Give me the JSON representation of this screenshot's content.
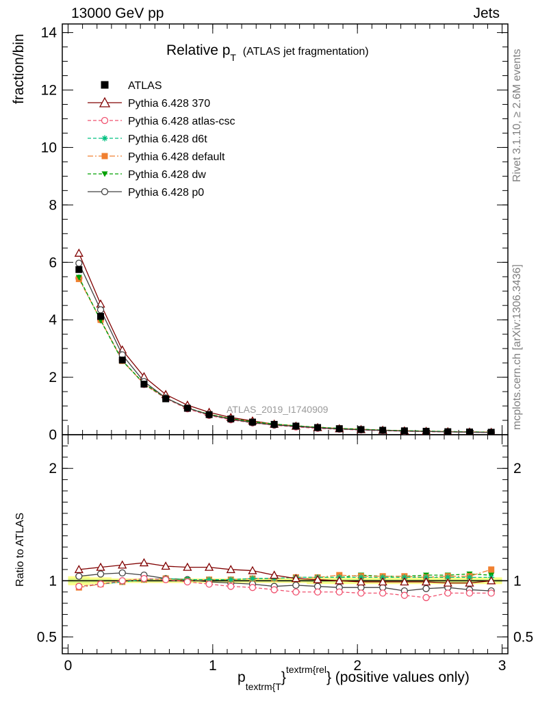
{
  "header": {
    "left": "13000 GeV pp",
    "right": "Jets",
    "title_main": "Relative p",
    "title_sub": "T",
    "title_paren": "(ATLAS jet fragmentation)"
  },
  "side_labels": {
    "rivet": "Rivet 3.1.10, ≥ 2.6M events",
    "mcplots": "mcplots.cern.ch [arXiv:1306.3436]"
  },
  "watermark": "ATLAS_2019_I1740909",
  "axes": {
    "ylabel_top": "fraction/bin",
    "ylabel_bottom": "Ratio to ATLAS",
    "xlabel_main": "p",
    "xlabel_sub": "textrm{T",
    "xlabel_brace": "}",
    "xlabel_sup": "textrm{rel",
    "xlabel_tail": "} (positive values only)"
  },
  "chart_data": {
    "type": "line",
    "x": [
      0.075,
      0.225,
      0.375,
      0.525,
      0.675,
      0.825,
      0.975,
      1.125,
      1.275,
      1.425,
      1.575,
      1.725,
      1.875,
      2.025,
      2.175,
      2.325,
      2.475,
      2.625,
      2.775,
      2.925
    ],
    "xlim": [
      -0.04,
      3.04
    ],
    "xticks": [
      0,
      1,
      2,
      3
    ],
    "top_panel": {
      "ylim": [
        0,
        14.3
      ],
      "yticks": [
        0,
        2,
        4,
        6,
        8,
        10,
        12,
        14
      ],
      "series": [
        {
          "name": "ATLAS",
          "color": "#000000",
          "marker": "filled-square",
          "line": "none",
          "values": [
            5.75,
            4.12,
            2.6,
            1.76,
            1.25,
            0.92,
            0.7,
            0.55,
            0.44,
            0.36,
            0.3,
            0.25,
            0.21,
            0.18,
            0.155,
            0.135,
            0.12,
            0.105,
            0.095,
            0.085
          ]
        },
        {
          "name": "Pythia 6.428 370",
          "color": "#800000",
          "marker": "open-triangle",
          "line": "solid",
          "values": [
            6.32,
            4.55,
            2.95,
            2.02,
            1.4,
            1.03,
            0.78,
            0.6,
            0.48,
            0.37,
            0.3,
            0.25,
            0.21,
            0.18,
            0.155,
            0.135,
            0.12,
            0.105,
            0.094,
            0.085
          ]
        },
        {
          "name": "Pythia 6.428 atlas-csc",
          "color": "#f0506e",
          "marker": "open-circle",
          "line": "dashed",
          "values": [
            5.45,
            4.0,
            2.6,
            1.75,
            1.26,
            0.9,
            0.67,
            0.52,
            0.41,
            0.33,
            0.27,
            0.22,
            0.19,
            0.16,
            0.14,
            0.12,
            0.105,
            0.094,
            0.085,
            0.077
          ]
        },
        {
          "name": "Pythia 6.428 d6t",
          "color": "#00c080",
          "marker": "star",
          "line": "dashed",
          "values": [
            5.47,
            3.99,
            2.58,
            1.78,
            1.28,
            0.93,
            0.71,
            0.56,
            0.45,
            0.37,
            0.31,
            0.26,
            0.22,
            0.19,
            0.16,
            0.14,
            0.125,
            0.11,
            0.098,
            0.088
          ]
        },
        {
          "name": "Pythia 6.428 default",
          "color": "#f08030",
          "marker": "filled-square",
          "line": "dashdot",
          "values": [
            5.42,
            4.0,
            2.57,
            1.77,
            1.28,
            0.92,
            0.71,
            0.56,
            0.45,
            0.37,
            0.31,
            0.26,
            0.22,
            0.19,
            0.16,
            0.14,
            0.124,
            0.11,
            0.098,
            0.094
          ]
        },
        {
          "name": "Pythia 6.428 dw",
          "color": "#00a000",
          "marker": "filled-triangle-down",
          "line": "dashed",
          "values": [
            5.48,
            3.98,
            2.57,
            1.78,
            1.28,
            0.93,
            0.71,
            0.56,
            0.45,
            0.37,
            0.31,
            0.26,
            0.22,
            0.19,
            0.16,
            0.14,
            0.125,
            0.11,
            0.099,
            0.087
          ]
        },
        {
          "name": "Pythia 6.428 p0",
          "color": "#404040",
          "marker": "open-circle",
          "line": "solid",
          "values": [
            5.97,
            4.35,
            2.78,
            1.85,
            1.28,
            0.93,
            0.69,
            0.54,
            0.42,
            0.34,
            0.29,
            0.24,
            0.2,
            0.17,
            0.15,
            0.125,
            0.113,
            0.099,
            0.088,
            0.078
          ]
        }
      ]
    },
    "ratio_panel": {
      "ylim": [
        0.35,
        2.3
      ],
      "yticks": [
        0.5,
        1,
        2
      ],
      "band": {
        "low": [
          0.96,
          0.97,
          0.98,
          0.98,
          0.98,
          0.98,
          0.98,
          0.98,
          0.98,
          0.98,
          0.98,
          0.97,
          0.97,
          0.97,
          0.97,
          0.97,
          0.97,
          0.97,
          0.97,
          0.97
        ],
        "high": [
          1.04,
          1.03,
          1.02,
          1.02,
          1.02,
          1.02,
          1.02,
          1.02,
          1.02,
          1.02,
          1.02,
          1.03,
          1.03,
          1.03,
          1.03,
          1.03,
          1.03,
          1.03,
          1.03,
          1.03
        ],
        "color": "#ffff66"
      },
      "series": [
        {
          "name": "Pythia 6.428 370",
          "color": "#800000",
          "marker": "open-triangle",
          "line": "solid",
          "values": [
            1.1,
            1.12,
            1.14,
            1.16,
            1.13,
            1.12,
            1.12,
            1.1,
            1.09,
            1.05,
            1.02,
            1.01,
            1.0,
            0.99,
            0.99,
            0.99,
            0.99,
            0.98,
            0.98,
            1.0
          ]
        },
        {
          "name": "Pythia 6.428 atlas-csc",
          "color": "#f0506e",
          "marker": "open-circle",
          "line": "dashed",
          "values": [
            0.95,
            0.97,
            1.0,
            1.02,
            1.01,
            0.99,
            0.97,
            0.95,
            0.94,
            0.92,
            0.9,
            0.9,
            0.9,
            0.89,
            0.89,
            0.87,
            0.85,
            0.89,
            0.89,
            0.89
          ]
        },
        {
          "name": "Pythia 6.428 d6t",
          "color": "#00c080",
          "marker": "star",
          "line": "dashed",
          "values": [
            0.95,
            0.97,
            0.99,
            1.01,
            1.02,
            1.01,
            1.01,
            1.01,
            1.02,
            1.02,
            1.03,
            1.03,
            1.03,
            1.03,
            1.03,
            1.03,
            1.03,
            1.03,
            1.03,
            1.03
          ]
        },
        {
          "name": "Pythia 6.428 default",
          "color": "#f08030",
          "marker": "filled-square",
          "line": "dashdot",
          "values": [
            0.94,
            0.97,
            0.99,
            1.01,
            1.02,
            1.0,
            1.01,
            1.01,
            1.02,
            1.02,
            1.03,
            1.03,
            1.05,
            1.04,
            1.04,
            1.04,
            1.03,
            1.04,
            1.04,
            1.1
          ]
        },
        {
          "name": "Pythia 6.428 dw",
          "color": "#00a000",
          "marker": "filled-triangle-down",
          "line": "dashed",
          "values": [
            0.95,
            0.97,
            0.99,
            1.01,
            1.02,
            1.01,
            1.01,
            1.01,
            1.02,
            1.02,
            1.03,
            1.03,
            1.03,
            1.05,
            1.04,
            1.04,
            1.05,
            1.05,
            1.06,
            1.05
          ]
        },
        {
          "name": "Pythia 6.428 p0",
          "color": "#404040",
          "marker": "open-circle",
          "line": "solid",
          "values": [
            1.04,
            1.06,
            1.07,
            1.05,
            1.02,
            1.01,
            0.99,
            0.98,
            0.97,
            0.95,
            0.96,
            0.95,
            0.94,
            0.94,
            0.94,
            0.91,
            0.93,
            0.94,
            0.92,
            0.91
          ]
        }
      ]
    }
  }
}
